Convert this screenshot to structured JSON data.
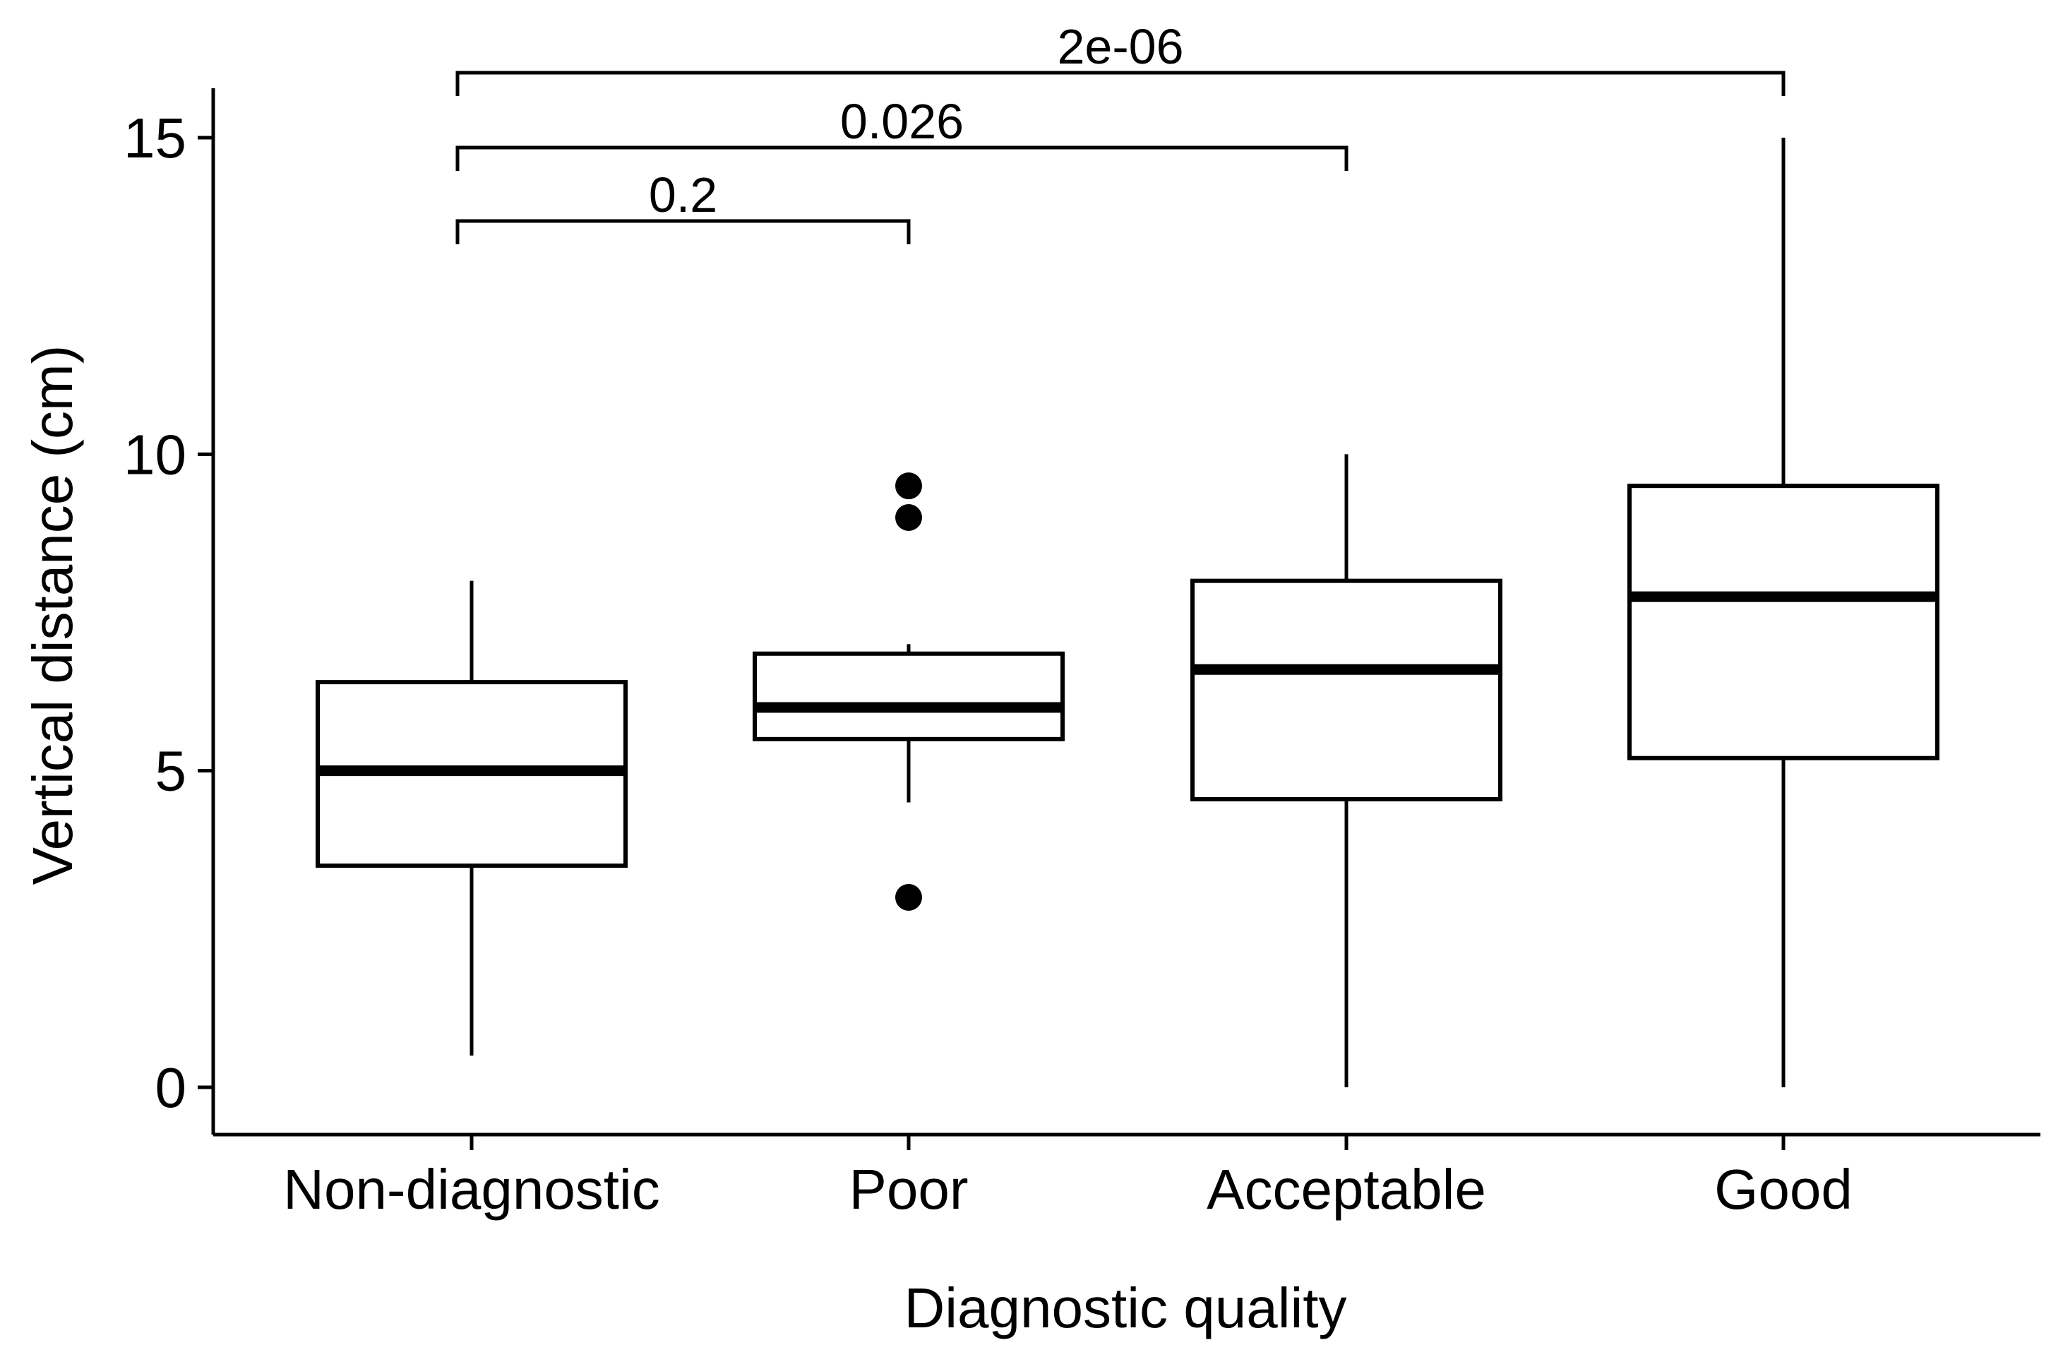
{
  "chart_data": {
    "type": "boxplot",
    "xlabel": "Diagnostic quality",
    "ylabel": "Vertical distance (cm)",
    "ylim": [
      -1.5,
      16.5
    ],
    "yticks": [
      0,
      5,
      10,
      15
    ],
    "ytick_labels": [
      "0",
      "5",
      "10",
      "15"
    ],
    "categories": [
      "Non-diagnostic",
      "Poor",
      "Acceptable",
      "Good"
    ],
    "boxes": [
      {
        "category": "Non-diagnostic",
        "whisker_low": 0.5,
        "q1": 3.5,
        "median": 5.0,
        "q3": 6.4,
        "whisker_high": 8.0,
        "outliers": []
      },
      {
        "category": "Poor",
        "whisker_low": 4.5,
        "q1": 5.5,
        "median": 6.0,
        "q3": 6.85,
        "whisker_high": 7.0,
        "outliers": [
          9.5,
          9.0,
          3.0
        ]
      },
      {
        "category": "Acceptable",
        "whisker_low": 0.0,
        "q1": 4.55,
        "median": 6.6,
        "q3": 8.0,
        "whisker_high": 10.0,
        "outliers": []
      },
      {
        "category": "Good",
        "whisker_low": 0.0,
        "q1": 5.2,
        "median": 7.75,
        "q3": 9.5,
        "whisker_high": 15.0,
        "outliers": []
      }
    ],
    "comparisons": [
      {
        "from": "Non-diagnostic",
        "to": "Poor",
        "label": "0.2"
      },
      {
        "from": "Non-diagnostic",
        "to": "Acceptable",
        "label": "0.026"
      },
      {
        "from": "Non-diagnostic",
        "to": "Good",
        "label": "2e-06"
      }
    ]
  }
}
